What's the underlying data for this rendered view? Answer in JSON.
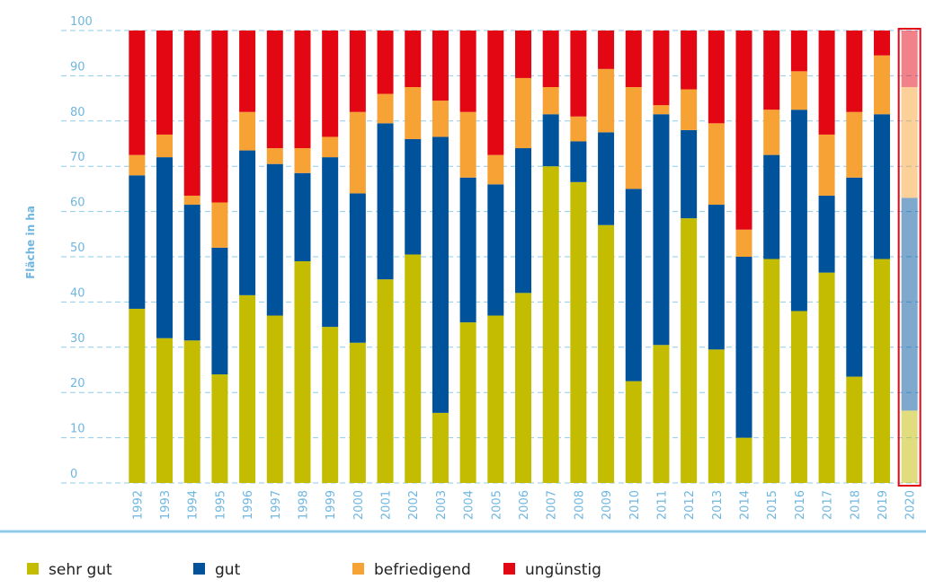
{
  "chart_data": {
    "type": "stacked_bar",
    "y_label": "Fläche in ha",
    "categories": [
      "1992",
      "1993",
      "1994",
      "1995",
      "1996",
      "1997",
      "1998",
      "1999",
      "2000",
      "2001",
      "2002",
      "2003",
      "2004",
      "2005",
      "2006",
      "2007",
      "2008",
      "2009",
      "2010",
      "2011",
      "2012",
      "2013",
      "2014",
      "2015",
      "2016",
      "2017",
      "2018",
      "2019",
      "2020"
    ],
    "series": [
      {
        "name": "sehr gut",
        "color": "#c3bc00",
        "values": [
          38.5,
          32,
          31.5,
          24,
          41.5,
          37,
          49,
          34.5,
          31,
          45,
          50.5,
          15.5,
          35.5,
          37,
          42,
          70,
          66.5,
          57,
          22.5,
          30.5,
          58.5,
          29.5,
          10,
          49.5,
          38,
          46.5,
          23.5,
          49.5,
          16
        ]
      },
      {
        "name": "gut",
        "color": "#00529b",
        "values": [
          29.5,
          40,
          30,
          28,
          32,
          33.5,
          19.5,
          37.5,
          33,
          34.5,
          25.5,
          61,
          32,
          29,
          32,
          11.5,
          9,
          20.5,
          42.5,
          51,
          19.5,
          32,
          40,
          23,
          44.5,
          17,
          44,
          32,
          47
        ]
      },
      {
        "name": "befriedigend",
        "color": "#f7a234",
        "values": [
          4.5,
          5,
          2,
          10,
          8.5,
          3.5,
          5.5,
          4.5,
          18,
          6.5,
          11.5,
          8,
          14.5,
          6.5,
          15.5,
          6,
          5.5,
          14,
          22.5,
          2,
          9,
          18,
          6,
          10,
          8.5,
          13.5,
          14.5,
          13,
          24.5
        ]
      },
      {
        "name": "ungünstig",
        "color": "#e30613",
        "values": [
          27.5,
          23,
          36.5,
          38,
          18,
          26,
          26,
          23.5,
          18,
          14,
          12.5,
          15.5,
          18,
          27.5,
          10.5,
          12.5,
          19,
          8.5,
          12.5,
          16.5,
          13,
          20.5,
          44,
          17.5,
          9,
          23,
          18,
          5.5,
          12.5
        ]
      }
    ],
    "highlight": "2020",
    "ylim": [
      0,
      100
    ],
    "yticks": [
      0,
      10,
      20,
      30,
      40,
      50,
      60,
      70,
      80,
      90,
      100
    ],
    "grid": true
  }
}
